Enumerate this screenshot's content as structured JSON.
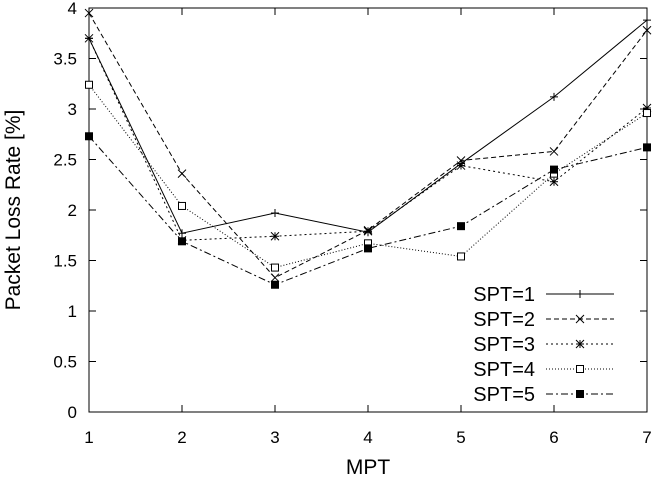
{
  "chart_data": {
    "type": "line",
    "title": "",
    "xlabel": "MPT",
    "ylabel": "Packet Loss Rate [%]",
    "xlim": [
      1,
      7
    ],
    "ylim": [
      0,
      4
    ],
    "x": [
      1,
      2,
      3,
      4,
      5,
      6,
      7
    ],
    "xticks": [
      "1",
      "2",
      "3",
      "4",
      "5",
      "6",
      "7"
    ],
    "yticks": [
      "0",
      "0.5",
      "1",
      "1.5",
      "2",
      "2.5",
      "3",
      "3.5",
      "4"
    ],
    "grid": false,
    "legend_position": "bottom-right",
    "series": [
      {
        "name": "SPT=1",
        "marker": "plus",
        "dash": "solid",
        "values": [
          3.7,
          1.77,
          1.97,
          1.78,
          2.46,
          3.12,
          3.88
        ]
      },
      {
        "name": "SPT=2",
        "marker": "cross",
        "dash": "dashed",
        "values": [
          3.95,
          2.36,
          1.33,
          1.8,
          2.49,
          2.58,
          3.78
        ]
      },
      {
        "name": "SPT=3",
        "marker": "star",
        "dash": "dotted",
        "values": [
          3.7,
          1.7,
          1.74,
          1.79,
          2.44,
          2.28,
          3.01
        ]
      },
      {
        "name": "SPT=4",
        "marker": "open-square",
        "dash": "fine-dotted",
        "values": [
          3.24,
          2.04,
          1.43,
          1.67,
          1.54,
          2.36,
          2.96
        ]
      },
      {
        "name": "SPT=5",
        "marker": "filled-square",
        "dash": "dash-dot",
        "values": [
          2.73,
          1.69,
          1.26,
          1.62,
          1.84,
          2.4,
          2.62
        ]
      }
    ]
  }
}
